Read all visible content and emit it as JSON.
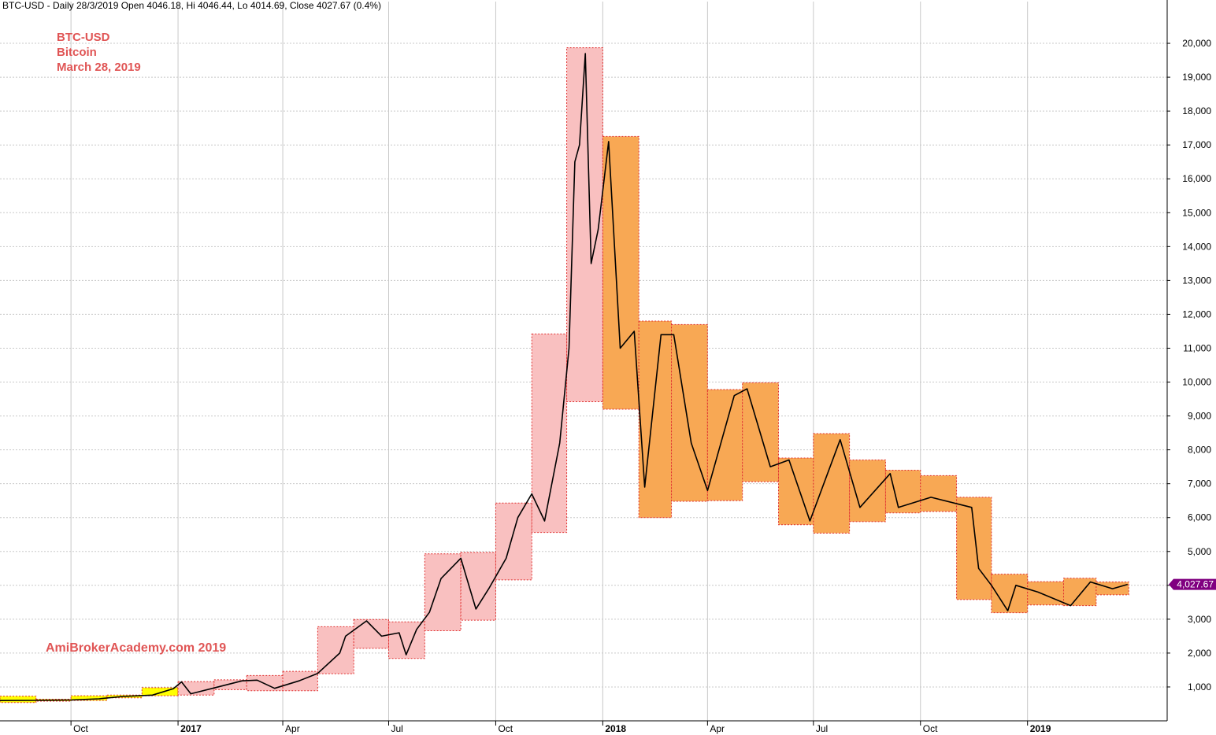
{
  "header": {
    "info": "BTC-USD - Daily 28/3/2019 Open 4046.18, Hi 4046.44, Lo 4014.69, Close 4027.67 (0.4%)"
  },
  "annotations": {
    "ticker": "BTC-USD",
    "name": "Bitcoin",
    "date": "March 28, 2019",
    "watermark": "AmiBrokerAcademy.com  2019"
  },
  "price_tag": "4,027.67",
  "colors": {
    "price_line": "#000000",
    "box_pink": "#f9c0c0",
    "box_orange": "#f8a854",
    "box_yellow": "#ffff00",
    "box_border": "#e03030",
    "grid": "#c8c8c8",
    "tag": "#800080",
    "annotation": "#e05555"
  },
  "chart_data": {
    "type": "line",
    "title": "BTC-USD",
    "subtitle": "Bitcoin",
    "ylim": [
      0,
      21000
    ],
    "y_ticks": [
      1000,
      2000,
      3000,
      4000,
      5000,
      6000,
      7000,
      8000,
      9000,
      10000,
      11000,
      12000,
      13000,
      14000,
      15000,
      16000,
      17000,
      18000,
      19000,
      20000
    ],
    "y_tick_labels": [
      "1,000",
      "2,000",
      "3,000",
      "4,000",
      "5,000",
      "6,000",
      "7,000",
      "8,000",
      "9,000",
      "10,000",
      "11,000",
      "12,000",
      "13,000",
      "14,000",
      "15,000",
      "16,000",
      "17,000",
      "18,000",
      "19,000",
      "20,000"
    ],
    "xlim": [
      "2016-08-01",
      "2019-05-01"
    ],
    "x_ticks": [
      {
        "date": "2016-10-01",
        "label": "Oct",
        "year": false
      },
      {
        "date": "2017-01-01",
        "label": "2017",
        "year": true
      },
      {
        "date": "2017-04-01",
        "label": "Apr",
        "year": false
      },
      {
        "date": "2017-07-01",
        "label": "Jul",
        "year": false
      },
      {
        "date": "2017-10-01",
        "label": "Oct",
        "year": false
      },
      {
        "date": "2018-01-01",
        "label": "2018",
        "year": true
      },
      {
        "date": "2018-04-01",
        "label": "Apr",
        "year": false
      },
      {
        "date": "2018-07-01",
        "label": "Jul",
        "year": false
      },
      {
        "date": "2018-10-01",
        "label": "Oct",
        "year": false
      },
      {
        "date": "2019-01-01",
        "label": "2019",
        "year": true
      }
    ],
    "grid": true,
    "series": [
      {
        "name": "BTC-USD",
        "points": [
          [
            "2016-08-01",
            600
          ],
          [
            "2016-09-01",
            605
          ],
          [
            "2016-10-01",
            615
          ],
          [
            "2016-10-25",
            650
          ],
          [
            "2016-11-15",
            720
          ],
          [
            "2016-12-10",
            760
          ],
          [
            "2016-12-28",
            950
          ],
          [
            "2017-01-04",
            1150
          ],
          [
            "2017-01-12",
            800
          ],
          [
            "2017-02-01",
            970
          ],
          [
            "2017-02-25",
            1180
          ],
          [
            "2017-03-10",
            1200
          ],
          [
            "2017-03-25",
            960
          ],
          [
            "2017-04-15",
            1180
          ],
          [
            "2017-05-01",
            1400
          ],
          [
            "2017-05-20",
            2000
          ],
          [
            "2017-05-25",
            2500
          ],
          [
            "2017-06-12",
            2950
          ],
          [
            "2017-06-25",
            2500
          ],
          [
            "2017-07-10",
            2600
          ],
          [
            "2017-07-16",
            1950
          ],
          [
            "2017-07-25",
            2700
          ],
          [
            "2017-08-05",
            3200
          ],
          [
            "2017-08-15",
            4200
          ],
          [
            "2017-09-01",
            4800
          ],
          [
            "2017-09-14",
            3300
          ],
          [
            "2017-09-25",
            3900
          ],
          [
            "2017-10-10",
            4800
          ],
          [
            "2017-10-20",
            6000
          ],
          [
            "2017-11-01",
            6700
          ],
          [
            "2017-11-12",
            5900
          ],
          [
            "2017-11-25",
            8200
          ],
          [
            "2017-12-03",
            11000
          ],
          [
            "2017-12-08",
            16500
          ],
          [
            "2017-12-12",
            17000
          ],
          [
            "2017-12-17",
            19700
          ],
          [
            "2017-12-22",
            13500
          ],
          [
            "2017-12-28",
            14500
          ],
          [
            "2018-01-06",
            17100
          ],
          [
            "2018-01-16",
            11000
          ],
          [
            "2018-01-28",
            11500
          ],
          [
            "2018-02-06",
            6900
          ],
          [
            "2018-02-20",
            11400
          ],
          [
            "2018-03-03",
            11400
          ],
          [
            "2018-03-18",
            8200
          ],
          [
            "2018-04-01",
            6800
          ],
          [
            "2018-04-24",
            9600
          ],
          [
            "2018-05-05",
            9800
          ],
          [
            "2018-05-25",
            7500
          ],
          [
            "2018-06-10",
            7700
          ],
          [
            "2018-06-28",
            5900
          ],
          [
            "2018-07-24",
            8300
          ],
          [
            "2018-08-10",
            6300
          ],
          [
            "2018-09-05",
            7300
          ],
          [
            "2018-09-12",
            6300
          ],
          [
            "2018-10-10",
            6600
          ],
          [
            "2018-11-14",
            6300
          ],
          [
            "2018-11-20",
            4500
          ],
          [
            "2018-12-01",
            4000
          ],
          [
            "2018-12-15",
            3250
          ],
          [
            "2018-12-22",
            4000
          ],
          [
            "2019-01-10",
            3800
          ],
          [
            "2019-02-07",
            3400
          ],
          [
            "2019-02-24",
            4100
          ],
          [
            "2019-03-15",
            3900
          ],
          [
            "2019-03-28",
            4028
          ]
        ]
      }
    ],
    "boxes": [
      {
        "color": "yellow",
        "start": "2016-08-01",
        "end": "2016-09-01",
        "low": 540,
        "high": 730
      },
      {
        "color": "yellow",
        "start": "2016-09-01",
        "end": "2016-10-01",
        "low": 580,
        "high": 640
      },
      {
        "color": "yellow",
        "start": "2016-10-01",
        "end": "2016-11-01",
        "low": 600,
        "high": 740
      },
      {
        "color": "yellow",
        "start": "2016-11-01",
        "end": "2016-12-01",
        "low": 680,
        "high": 760
      },
      {
        "color": "yellow",
        "start": "2016-12-01",
        "end": "2017-01-01",
        "low": 740,
        "high": 980
      },
      {
        "color": "pink",
        "start": "2017-01-01",
        "end": "2017-02-01",
        "low": 760,
        "high": 1160
      },
      {
        "color": "pink",
        "start": "2017-02-01",
        "end": "2017-03-01",
        "low": 920,
        "high": 1210
      },
      {
        "color": "pink",
        "start": "2017-03-01",
        "end": "2017-04-01",
        "low": 890,
        "high": 1340
      },
      {
        "color": "pink",
        "start": "2017-04-01",
        "end": "2017-05-01",
        "low": 890,
        "high": 1460
      },
      {
        "color": "pink",
        "start": "2017-05-01",
        "end": "2017-06-01",
        "low": 1390,
        "high": 2780
      },
      {
        "color": "pink",
        "start": "2017-06-01",
        "end": "2017-07-01",
        "low": 2140,
        "high": 2990
      },
      {
        "color": "pink",
        "start": "2017-07-01",
        "end": "2017-08-01",
        "low": 1840,
        "high": 2920
      },
      {
        "color": "pink",
        "start": "2017-08-01",
        "end": "2017-09-01",
        "low": 2660,
        "high": 4930
      },
      {
        "color": "pink",
        "start": "2017-09-01",
        "end": "2017-10-01",
        "low": 2970,
        "high": 4970
      },
      {
        "color": "pink",
        "start": "2017-10-01",
        "end": "2017-11-01",
        "low": 4160,
        "high": 6430
      },
      {
        "color": "pink",
        "start": "2017-11-01",
        "end": "2017-12-01",
        "low": 5560,
        "high": 11420
      },
      {
        "color": "pink",
        "start": "2017-12-01",
        "end": "2018-01-01",
        "low": 9420,
        "high": 19870
      },
      {
        "color": "orange",
        "start": "2018-01-01",
        "end": "2018-02-01",
        "low": 9200,
        "high": 17250
      },
      {
        "color": "orange",
        "start": "2018-02-01",
        "end": "2018-03-01",
        "low": 6000,
        "high": 11800
      },
      {
        "color": "orange",
        "start": "2018-03-01",
        "end": "2018-04-01",
        "low": 6480,
        "high": 11700
      },
      {
        "color": "orange",
        "start": "2018-04-01",
        "end": "2018-05-01",
        "low": 6500,
        "high": 9780
      },
      {
        "color": "orange",
        "start": "2018-05-01",
        "end": "2018-06-01",
        "low": 7060,
        "high": 9980
      },
      {
        "color": "orange",
        "start": "2018-06-01",
        "end": "2018-07-01",
        "low": 5790,
        "high": 7760
      },
      {
        "color": "orange",
        "start": "2018-07-01",
        "end": "2018-08-01",
        "low": 5540,
        "high": 8480
      },
      {
        "color": "orange",
        "start": "2018-08-01",
        "end": "2018-09-01",
        "low": 5880,
        "high": 7700
      },
      {
        "color": "orange",
        "start": "2018-09-01",
        "end": "2018-10-01",
        "low": 6140,
        "high": 7400
      },
      {
        "color": "orange",
        "start": "2018-10-01",
        "end": "2018-11-01",
        "low": 6180,
        "high": 7240
      },
      {
        "color": "orange",
        "start": "2018-11-01",
        "end": "2018-12-01",
        "low": 3580,
        "high": 6600
      },
      {
        "color": "orange",
        "start": "2018-12-01",
        "end": "2019-01-01",
        "low": 3190,
        "high": 4330
      },
      {
        "color": "orange",
        "start": "2019-01-01",
        "end": "2019-02-01",
        "low": 3420,
        "high": 4110
      },
      {
        "color": "orange",
        "start": "2019-02-01",
        "end": "2019-03-01",
        "low": 3400,
        "high": 4210
      },
      {
        "color": "orange",
        "start": "2019-03-01",
        "end": "2019-03-29",
        "low": 3720,
        "high": 4100
      }
    ],
    "last_close": 4027.67
  }
}
